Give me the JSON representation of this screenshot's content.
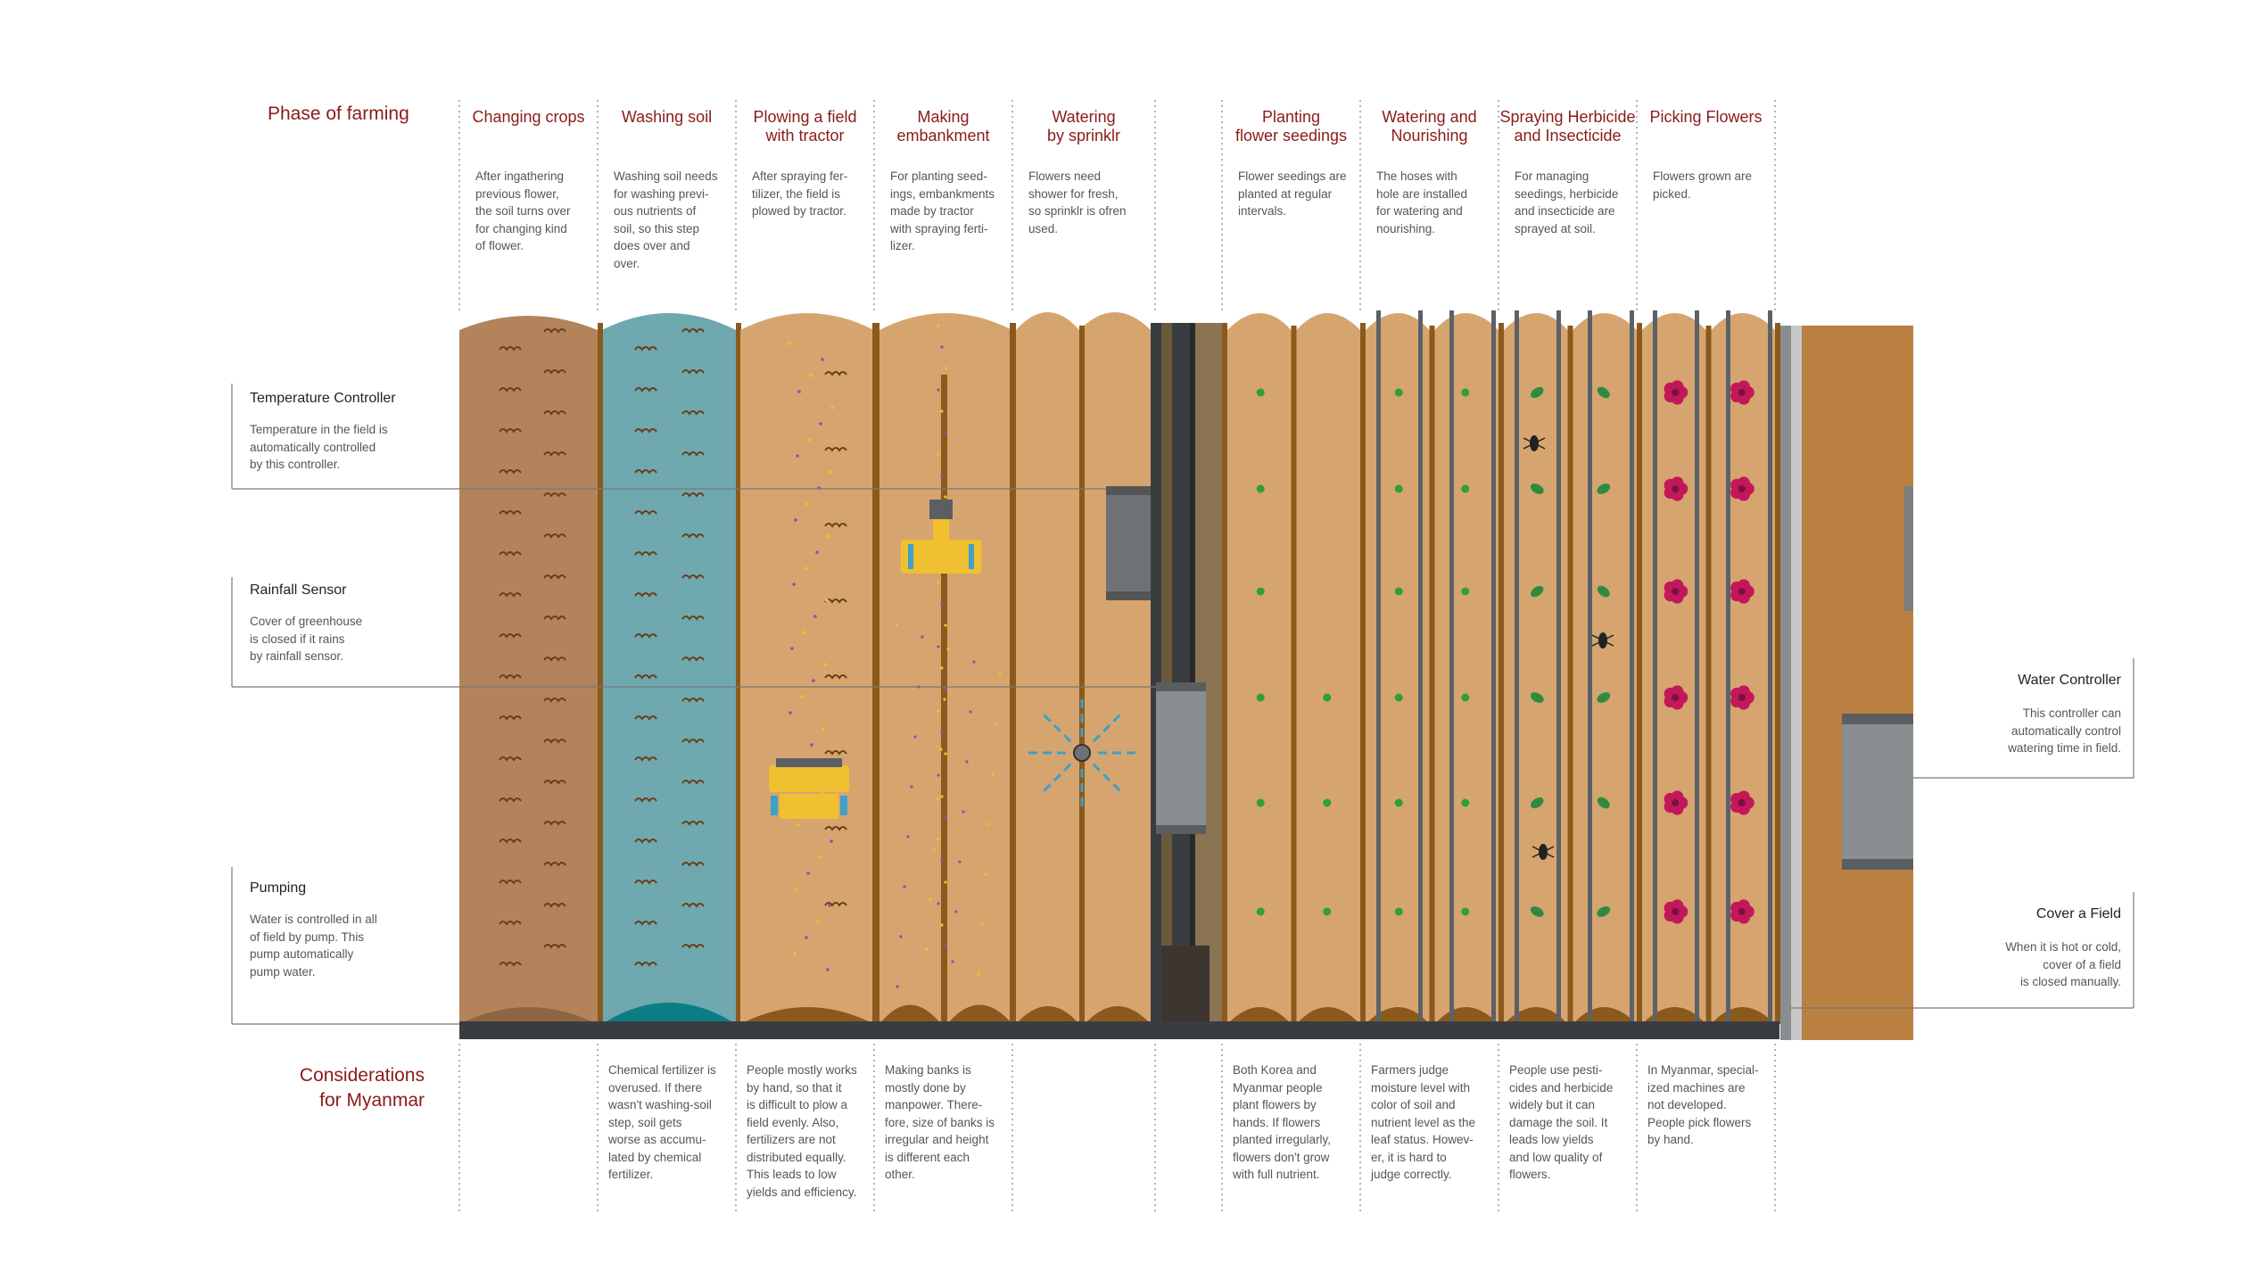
{
  "header": {
    "phase_label": "Phase of farming",
    "considerations_label_line1": "Considerations",
    "considerations_label_line2": "for Myanmar"
  },
  "phases": [
    {
      "title": [
        "Changing crops"
      ],
      "desc": [
        "After ingathering",
        "previous flower,",
        "the soil turns over",
        "for changing kind",
        "of flower."
      ]
    },
    {
      "title": [
        "Washing soil"
      ],
      "desc": [
        "Washing soil needs",
        "for washing previ-",
        "ous nutrients of",
        "soil, so this step",
        "does over and",
        "over."
      ]
    },
    {
      "title": [
        "Plowing a field",
        "with tractor"
      ],
      "desc": [
        "After spraying fer-",
        "tilizer, the field is",
        "plowed by tractor."
      ]
    },
    {
      "title": [
        "Making",
        "embankment"
      ],
      "desc": [
        "For planting seed-",
        "ings, embankments",
        "made by tractor",
        "with spraying ferti-",
        "lizer."
      ]
    },
    {
      "title": [
        "Watering",
        "by sprinklr"
      ],
      "desc": [
        "Flowers need",
        "shower for fresh,",
        "so sprinklr is ofren",
        "used."
      ]
    },
    {
      "title": [
        "Planting",
        "flower seedings"
      ],
      "desc": [
        "Flower seedings are",
        "planted at regular",
        "intervals."
      ]
    },
    {
      "title": [
        "Watering and",
        "Nourishing"
      ],
      "desc": [
        "The hoses with",
        "hole are installed",
        "for watering and",
        "nourishing."
      ]
    },
    {
      "title": [
        "Spraying Herbicide",
        "and Insecticide"
      ],
      "desc": [
        "For managing",
        "seedings, herbicide",
        "and insecticide are",
        "sprayed at soil."
      ]
    },
    {
      "title": [
        "Picking Flowers"
      ],
      "desc": [
        "Flowers grown are",
        "picked."
      ]
    }
  ],
  "considerations": [
    {
      "desc": [
        "Chemical fertilizer is",
        "overused. If there",
        "wasn't washing-soil",
        "step, soil gets",
        "worse as accumu-",
        "lated by chemical",
        "fertilizer."
      ]
    },
    {
      "desc": [
        "People mostly works",
        "by hand, so  that it",
        "is difficult to plow a",
        "field evenly. Also,",
        "fertilizers are not",
        "distributed equally.",
        "This leads to low",
        "yields and efficiency."
      ]
    },
    {
      "desc": [
        "Making banks is",
        "mostly done by",
        "manpower. There-",
        "fore, size of banks is",
        "irregular and height",
        "is different each",
        "other."
      ]
    },
    {
      "desc": [
        "Both Korea and",
        "Myanmar people",
        "plant flowers by",
        "hands. If flowers",
        "planted irregularly,",
        "flowers don't grow",
        "with full nutrient."
      ]
    },
    {
      "desc": [
        "Farmers judge",
        "moisture level with",
        "color of soil and",
        "nutrient level as the",
        "leaf status. Howev-",
        "er, it is hard to",
        "judge correctly."
      ]
    },
    {
      "desc": [
        "People use pesti-",
        "cides and herbicide",
        "widely but it can",
        "damage the soil. It",
        "leads low yields",
        "and low quality of",
        "flowers."
      ]
    },
    {
      "desc": [
        "In Myanmar, special-",
        "ized machines are",
        "not developed.",
        "People pick flowers",
        "by hand."
      ]
    }
  ],
  "left_items": [
    {
      "title": "Temperature Controller",
      "desc": [
        "Temperature in the field is",
        "automatically controlled",
        "by this controller."
      ]
    },
    {
      "title": "Rainfall Sensor",
      "desc": [
        "Cover of greenhouse",
        "is closed if it rains",
        "by rainfall sensor."
      ]
    },
    {
      "title": "Pumping",
      "desc": [
        "Water is controlled in all",
        "of field by pump. This",
        "pump automatically",
        "pump water."
      ]
    }
  ],
  "right_items": [
    {
      "title": "Water Controller",
      "desc": [
        "This controller can",
        "automatically control",
        "watering time in field."
      ]
    },
    {
      "title": "Cover a Field",
      "desc": [
        "When it is hot or cold,",
        "cover of a field",
        "is closed manually."
      ]
    }
  ],
  "colors": {
    "title_red": "#8b1a1a",
    "soil_dark": "#b3845b",
    "soil_light": "#d6a56f",
    "water": "#6fa8af",
    "bank": "#8a5a1c",
    "machine_yellow": "#f0c030",
    "pipe_gray": "#6e7275",
    "flower_pink": "#c2185b",
    "seed_green": "#2e9e3e"
  }
}
